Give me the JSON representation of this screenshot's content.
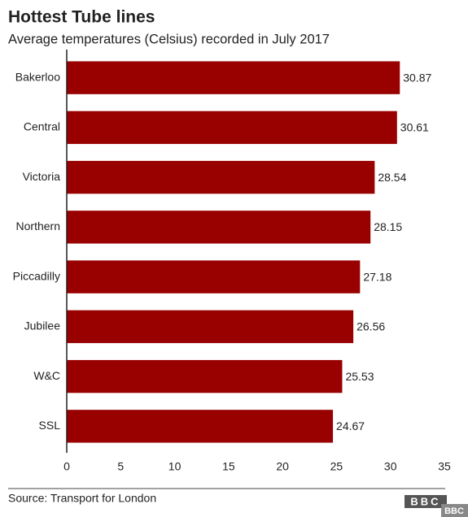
{
  "chart_data": {
    "type": "bar",
    "orientation": "horizontal",
    "title": "Hottest Tube lines",
    "subtitle": "Average temperatures (Celsius) recorded in July 2017",
    "categories": [
      "Bakerloo",
      "Central",
      "Victoria",
      "Northern",
      "Piccadilly",
      "Jubilee",
      "W&C",
      "SSL"
    ],
    "values": [
      30.87,
      30.61,
      28.54,
      28.15,
      27.18,
      26.56,
      25.53,
      24.67
    ],
    "color": "#990000",
    "xlim": [
      0,
      35
    ],
    "xticks": [
      0,
      5,
      10,
      15,
      20,
      25,
      30,
      35
    ],
    "grid": false,
    "source": "Source: Transport for London",
    "logo": "BBC",
    "watermark": "BBC"
  }
}
